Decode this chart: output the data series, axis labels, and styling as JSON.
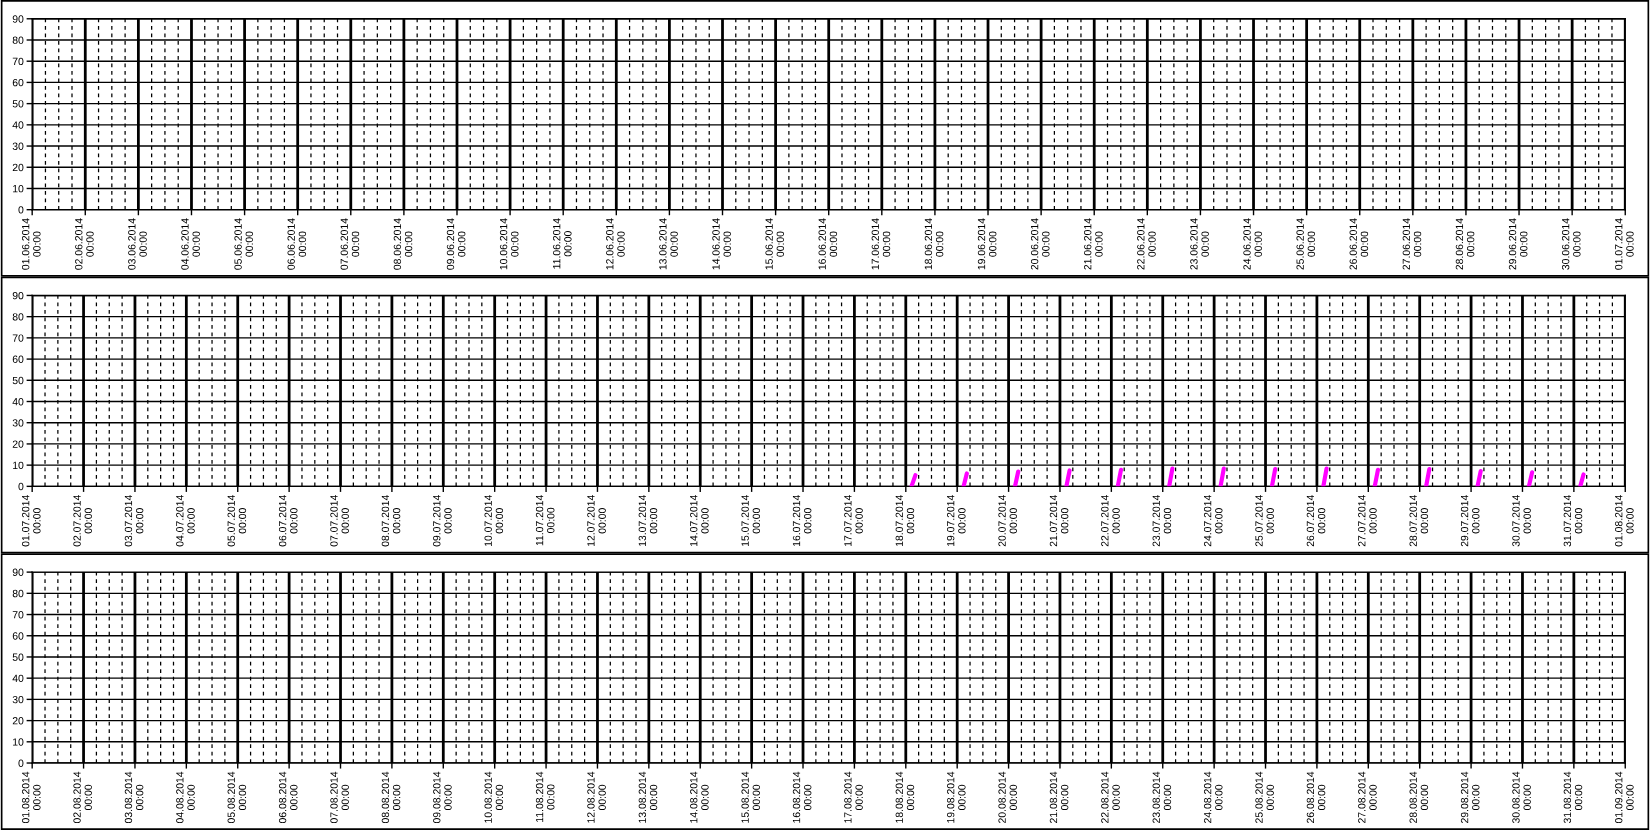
{
  "chart_data": [
    {
      "type": "line",
      "xlim": [
        "2014-06-01",
        "2014-07-01"
      ],
      "ylim": [
        0,
        90
      ],
      "yticks": [
        0,
        10,
        20,
        30,
        40,
        50,
        60,
        70,
        80,
        90
      ],
      "grid": true,
      "xticks": [
        {
          "value": "2014-06-01",
          "label": "01.06.2014\n00:00"
        },
        {
          "value": "2014-06-02",
          "label": "02.06.2014\n00:00"
        },
        {
          "value": "2014-06-03",
          "label": "03.06.2014\n00:00"
        },
        {
          "value": "2014-06-04",
          "label": "04.06.2014\n00:00"
        },
        {
          "value": "2014-06-05",
          "label": "05.06.2014\n00:00"
        },
        {
          "value": "2014-06-06",
          "label": "06.06.2014\n00:00"
        },
        {
          "value": "2014-06-07",
          "label": "07.06.2014\n00:00"
        },
        {
          "value": "2014-06-08",
          "label": "08.06.2014\n00:00"
        },
        {
          "value": "2014-06-09",
          "label": "09.06.2014\n00:00"
        },
        {
          "value": "2014-06-10",
          "label": "10.06.2014\n00:00"
        },
        {
          "value": "2014-06-11",
          "label": "11.06.2014\n00:00"
        },
        {
          "value": "2014-06-12",
          "label": "12.06.2014\n00:00"
        },
        {
          "value": "2014-06-13",
          "label": "13.06.2014\n00:00"
        },
        {
          "value": "2014-06-14",
          "label": "14.06.2014\n00:00"
        },
        {
          "value": "2014-06-15",
          "label": "15.06.2014\n00:00"
        },
        {
          "value": "2014-06-16",
          "label": "16.06.2014\n00:00"
        },
        {
          "value": "2014-06-17",
          "label": "17.06.2014\n00:00"
        },
        {
          "value": "2014-06-18",
          "label": "18.06.2014\n00:00"
        },
        {
          "value": "2014-06-19",
          "label": "19.06.2014\n00:00"
        },
        {
          "value": "2014-06-20",
          "label": "20.06.2014\n00:00"
        },
        {
          "value": "2014-06-21",
          "label": "21.06.2014\n00:00"
        },
        {
          "value": "2014-06-22",
          "label": "22.06.2014\n00:00"
        },
        {
          "value": "2014-06-23",
          "label": "23.06.2014\n00:00"
        },
        {
          "value": "2014-06-24",
          "label": "24.06.2014\n00:00"
        },
        {
          "value": "2014-06-25",
          "label": "25.06.2014\n00:00"
        },
        {
          "value": "2014-06-26",
          "label": "26.06.2014\n00:00"
        },
        {
          "value": "2014-06-27",
          "label": "27.06.2014\n00:00"
        },
        {
          "value": "2014-06-28",
          "label": "28.06.2014\n00:00"
        },
        {
          "value": "2014-06-29",
          "label": "29.06.2014\n00:00"
        },
        {
          "value": "2014-06-30",
          "label": "30.06.2014\n00:00"
        },
        {
          "value": "2014-07-01",
          "label": "01.07.2014\n00:00"
        }
      ]
    },
    {
      "type": "line",
      "xlim": [
        "2014-07-01",
        "2014-08-01"
      ],
      "ylim": [
        0,
        90
      ],
      "yticks": [
        0,
        10,
        20,
        30,
        40,
        50,
        60,
        70,
        80,
        90
      ],
      "grid": true,
      "series": [
        {
          "color": "#ff00ff",
          "x": [
            "2014-07-18T02:40",
            "2014-07-18T04:30",
            "2014-07-18T12:00",
            "2014-07-19T03:00",
            "2014-07-19T04:30",
            "2014-07-19T12:00",
            "2014-07-20T03:00",
            "2014-07-20T04:30",
            "2014-07-20T12:00",
            "2014-07-21T03:00",
            "2014-07-21T04:30",
            "2014-07-21T12:00",
            "2014-07-22T03:00",
            "2014-07-22T04:30",
            "2014-07-22T12:00",
            "2014-07-23T03:00",
            "2014-07-23T04:30",
            "2014-07-23T12:00",
            "2014-07-24T03:00",
            "2014-07-24T04:30",
            "2014-07-24T12:00",
            "2014-07-25T03:00",
            "2014-07-25T04:30",
            "2014-07-25T12:00",
            "2014-07-26T03:00",
            "2014-07-26T04:30",
            "2014-07-26T12:00",
            "2014-07-27T03:00",
            "2014-07-27T04:30",
            "2014-07-27T12:00",
            "2014-07-28T03:00",
            "2014-07-28T04:30",
            "2014-07-28T12:00",
            "2014-07-29T03:00",
            "2014-07-29T04:30",
            "2014-07-29T12:00",
            "2014-07-30T03:00",
            "2014-07-30T04:30",
            "2014-07-30T12:00",
            "2014-07-31T03:00",
            "2014-07-31T04:30"
          ],
          "values": [
            0,
            5.3,
            null,
            0,
            6.1,
            null,
            0,
            7.0,
            null,
            0,
            7.5,
            null,
            0,
            7.8,
            null,
            0,
            8.4,
            null,
            0,
            8.4,
            null,
            0,
            8.1,
            null,
            0,
            8.4,
            null,
            0,
            7.8,
            null,
            0,
            8.1,
            null,
            0,
            7.2,
            null,
            0,
            6.6,
            null,
            0,
            5.6
          ]
        }
      ],
      "xticks": [
        {
          "value": "2014-07-01",
          "label": "01.07.2014\n00:00"
        },
        {
          "value": "2014-07-02",
          "label": "02.07.2014\n00:00"
        },
        {
          "value": "2014-07-03",
          "label": "03.07.2014\n00:00"
        },
        {
          "value": "2014-07-04",
          "label": "04.07.2014\n00:00"
        },
        {
          "value": "2014-07-05",
          "label": "05.07.2014\n00:00"
        },
        {
          "value": "2014-07-06",
          "label": "06.07.2014\n00:00"
        },
        {
          "value": "2014-07-07",
          "label": "07.07.2014\n00:00"
        },
        {
          "value": "2014-07-08",
          "label": "08.07.2014\n00:00"
        },
        {
          "value": "2014-07-09",
          "label": "09.07.2014\n00:00"
        },
        {
          "value": "2014-07-10",
          "label": "10.07.2014\n00:00"
        },
        {
          "value": "2014-07-11",
          "label": "11.07.2014\n00:00"
        },
        {
          "value": "2014-07-12",
          "label": "12.07.2014\n00:00"
        },
        {
          "value": "2014-07-13",
          "label": "13.07.2014\n00:00"
        },
        {
          "value": "2014-07-14",
          "label": "14.07.2014\n00:00"
        },
        {
          "value": "2014-07-15",
          "label": "15.07.2014\n00:00"
        },
        {
          "value": "2014-07-16",
          "label": "16.07.2014\n00:00"
        },
        {
          "value": "2014-07-17",
          "label": "17.07.2014\n00:00"
        },
        {
          "value": "2014-07-18",
          "label": "18.07.2014\n00:00"
        },
        {
          "value": "2014-07-19",
          "label": "19.07.2014\n00:00"
        },
        {
          "value": "2014-07-20",
          "label": "20.07.2014\n00:00"
        },
        {
          "value": "2014-07-21",
          "label": "21.07.2014\n00:00"
        },
        {
          "value": "2014-07-22",
          "label": "22.07.2014\n00:00"
        },
        {
          "value": "2014-07-23",
          "label": "23.07.2014\n00:00"
        },
        {
          "value": "2014-07-24",
          "label": "24.07.2014\n00:00"
        },
        {
          "value": "2014-07-25",
          "label": "25.07.2014\n00:00"
        },
        {
          "value": "2014-07-26",
          "label": "26.07.2014\n00:00"
        },
        {
          "value": "2014-07-27",
          "label": "27.07.2014\n00:00"
        },
        {
          "value": "2014-07-28",
          "label": "28.07.2014\n00:00"
        },
        {
          "value": "2014-07-29",
          "label": "29.07.2014\n00:00"
        },
        {
          "value": "2014-07-30",
          "label": "30.07.2014\n00:00"
        },
        {
          "value": "2014-07-31",
          "label": "31.07.2014\n00:00"
        },
        {
          "value": "2014-08-01",
          "label": "01.08.2014\n00:00"
        }
      ]
    },
    {
      "type": "line",
      "xlim": [
        "2014-08-01",
        "2014-09-01"
      ],
      "ylim": [
        0,
        90
      ],
      "yticks": [
        0,
        10,
        20,
        30,
        40,
        50,
        60,
        70,
        80,
        90
      ],
      "grid": true,
      "xticks": [
        {
          "value": "2014-08-01",
          "label": "01.08.2014\n00:00"
        },
        {
          "value": "2014-08-02",
          "label": "02.08.2014\n00:00"
        },
        {
          "value": "2014-08-03",
          "label": "03.08.2014\n00:00"
        },
        {
          "value": "2014-08-04",
          "label": "04.08.2014\n00:00"
        },
        {
          "value": "2014-08-05",
          "label": "05.08.2014\n00:00"
        },
        {
          "value": "2014-08-06",
          "label": "06.08.2014\n00:00"
        },
        {
          "value": "2014-08-07",
          "label": "07.08.2014\n00:00"
        },
        {
          "value": "2014-08-08",
          "label": "08.08.2014\n00:00"
        },
        {
          "value": "2014-08-09",
          "label": "09.08.2014\n00:00"
        },
        {
          "value": "2014-08-10",
          "label": "10.08.2014\n00:00"
        },
        {
          "value": "2014-08-11",
          "label": "11.08.2014\n00:00"
        },
        {
          "value": "2014-08-12",
          "label": "12.08.2014\n00:00"
        },
        {
          "value": "2014-08-13",
          "label": "13.08.2014\n00:00"
        },
        {
          "value": "2014-08-14",
          "label": "14.08.2014\n00:00"
        },
        {
          "value": "2014-08-15",
          "label": "15.08.2014\n00:00"
        },
        {
          "value": "2014-08-16",
          "label": "16.08.2014\n00:00"
        },
        {
          "value": "2014-08-17",
          "label": "17.08.2014\n00:00"
        },
        {
          "value": "2014-08-18",
          "label": "18.08.2014\n00:00"
        },
        {
          "value": "2014-08-19",
          "label": "19.08.2014\n00:00"
        },
        {
          "value": "2014-08-20",
          "label": "20.08.2014\n00:00"
        },
        {
          "value": "2014-08-21",
          "label": "21.08.2014\n00:00"
        },
        {
          "value": "2014-08-22",
          "label": "22.08.2014\n00:00"
        },
        {
          "value": "2014-08-23",
          "label": "23.08.2014\n00:00"
        },
        {
          "value": "2014-08-24",
          "label": "24.08.2014\n00:00"
        },
        {
          "value": "2014-08-25",
          "label": "25.08.2014\n00:00"
        },
        {
          "value": "2014-08-26",
          "label": "26.08.2014\n00:00"
        },
        {
          "value": "2014-08-27",
          "label": "27.08.2014\n00:00"
        },
        {
          "value": "2014-08-28",
          "label": "28.08.2014\n00:00"
        },
        {
          "value": "2014-08-29",
          "label": "29.08.2014\n00:00"
        },
        {
          "value": "2014-08-30",
          "label": "30.08.2014\n00:00"
        },
        {
          "value": "2014-08-31",
          "label": "31.08.2014\n00:00"
        },
        {
          "value": "2014-09-01",
          "label": "01.09.2014\n00:00"
        }
      ]
    }
  ]
}
